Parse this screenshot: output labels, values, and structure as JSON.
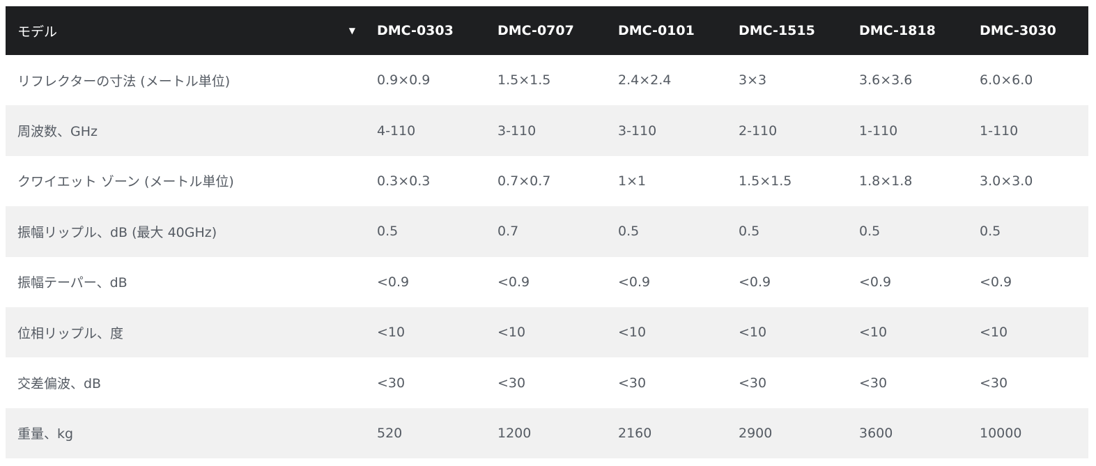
{
  "table": {
    "header": {
      "label": "モデル",
      "sort_icon": "▼",
      "models": [
        "DMC-0303",
        "DMC-0707",
        "DMC-0101",
        "DMC-1515",
        "DMC-1818",
        "DMC-3030"
      ]
    },
    "rows": [
      {
        "label": "リフレクターの寸法 (メートル単位)",
        "values": [
          "0.9×0.9",
          "1.5×1.5",
          "2.4×2.4",
          "3×3",
          "3.6×3.6",
          "6.0×6.0"
        ]
      },
      {
        "label": "周波数、GHz",
        "values": [
          "4-110",
          "3-110",
          "3-110",
          "2-110",
          "1-110",
          "1-110"
        ]
      },
      {
        "label": "クワイエット ゾーン (メートル単位)",
        "values": [
          "0.3×0.3",
          "0.7×0.7",
          "1×1",
          "1.5×1.5",
          "1.8×1.8",
          "3.0×3.0"
        ]
      },
      {
        "label": "振幅リップル、dB (最大 40GHz)",
        "values": [
          "0.5",
          "0.7",
          "0.5",
          "0.5",
          "0.5",
          "0.5"
        ]
      },
      {
        "label": "振幅テーパー、dB",
        "values": [
          "<0.9",
          "<0.9",
          "<0.9",
          "<0.9",
          "<0.9",
          "<0.9"
        ]
      },
      {
        "label": "位相リップル、度",
        "values": [
          "<10",
          "<10",
          "<10",
          "<10",
          "<10",
          "<10"
        ]
      },
      {
        "label": "交差偏波、dB",
        "values": [
          "<30",
          "<30",
          "<30",
          "<30",
          "<30",
          "<30"
        ]
      },
      {
        "label": "重量、kg",
        "values": [
          "520",
          "1200",
          "2160",
          "2900",
          "3600",
          "10000"
        ]
      }
    ]
  },
  "colors": {
    "header_bg": "#1e1f21",
    "header_text": "#ffffff",
    "body_text": "#555b63",
    "row_alt_bg": "#f1f1f1",
    "row_bg": "#ffffff"
  },
  "icons": {
    "sort": "chevron-down-icon"
  }
}
